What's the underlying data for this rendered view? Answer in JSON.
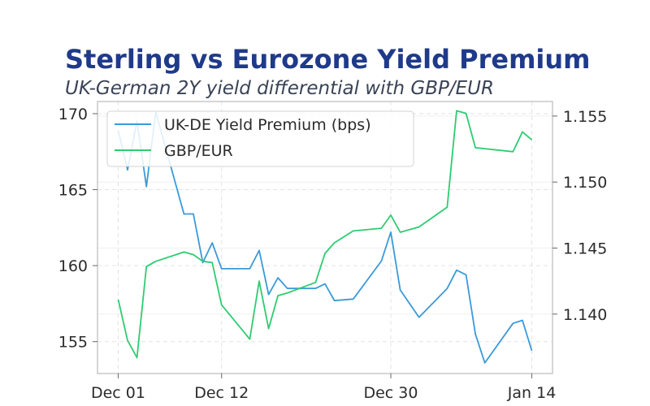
{
  "chart_data": {
    "type": "line",
    "title": "Sterling vs Eurozone Yield Premium",
    "subtitle": "UK-German 2Y yield differential with GBP/EUR",
    "xlabel": "",
    "x_ticks": [
      "Dec 01",
      "Dec 12",
      "Dec 30",
      "Jan 14"
    ],
    "x_tick_days": [
      0,
      11,
      29,
      44
    ],
    "xlim_days": [
      -2.2,
      46.2
    ],
    "grid": true,
    "legend_position": "top-left",
    "y_left": {
      "label": "",
      "ylim": [
        152.9,
        170.8
      ],
      "ticks": [
        155,
        160,
        165,
        170
      ]
    },
    "y_right": {
      "label": "",
      "ylim": [
        1.1355,
        1.1561
      ],
      "ticks": [
        1.14,
        1.145,
        1.15,
        1.155
      ],
      "tick_labels": [
        "1.140",
        "1.145",
        "1.150",
        "1.155"
      ]
    },
    "series": [
      {
        "name": "UK-DE Yield Premium (bps)",
        "axis": "left",
        "color": "#3a9ad9",
        "points": [
          [
            "Dec 01",
            168.9
          ],
          [
            "Dec 02",
            166.3
          ],
          [
            "Dec 03",
            169.5
          ],
          [
            "Dec 04",
            165.2
          ],
          [
            "Dec 05",
            170.1
          ],
          [
            "Dec 08",
            163.4
          ],
          [
            "Dec 09",
            163.4
          ],
          [
            "Dec 10",
            160.2
          ],
          [
            "Dec 11",
            161.5
          ],
          [
            "Dec 12",
            159.8
          ],
          [
            "Dec 15",
            159.8
          ],
          [
            "Dec 16",
            161.0
          ],
          [
            "Dec 17",
            158.1
          ],
          [
            "Dec 18",
            159.2
          ],
          [
            "Dec 19",
            158.5
          ],
          [
            "Dec 22",
            158.5
          ],
          [
            "Dec 23",
            158.8
          ],
          [
            "Dec 24",
            157.7
          ],
          [
            "Dec 26",
            157.8
          ],
          [
            "Dec 29",
            160.3
          ],
          [
            "Dec 30",
            162.2
          ],
          [
            "Dec 31",
            158.4
          ],
          [
            "Jan 02",
            156.6
          ],
          [
            "Jan 05",
            158.5
          ],
          [
            "Jan 06",
            159.7
          ],
          [
            "Jan 07",
            159.4
          ],
          [
            "Jan 08",
            155.5
          ],
          [
            "Jan 09",
            153.6
          ],
          [
            "Jan 12",
            156.2
          ],
          [
            "Jan 13",
            156.4
          ],
          [
            "Jan 14",
            154.4
          ]
        ]
      },
      {
        "name": "GBP/EUR",
        "axis": "right",
        "color": "#2ecc71",
        "points": [
          [
            "Dec 01",
            1.1411
          ],
          [
            "Dec 02",
            1.138
          ],
          [
            "Dec 03",
            1.1367
          ],
          [
            "Dec 04",
            1.1436
          ],
          [
            "Dec 05",
            1.144
          ],
          [
            "Dec 08",
            1.1447
          ],
          [
            "Dec 09",
            1.1445
          ],
          [
            "Dec 10",
            1.144
          ],
          [
            "Dec 11",
            1.1439
          ],
          [
            "Dec 12",
            1.1407
          ],
          [
            "Dec 15",
            1.1381
          ],
          [
            "Dec 16",
            1.1425
          ],
          [
            "Dec 17",
            1.1389
          ],
          [
            "Dec 18",
            1.1414
          ],
          [
            "Dec 19",
            1.1416
          ],
          [
            "Dec 22",
            1.1424
          ],
          [
            "Dec 23",
            1.1446
          ],
          [
            "Dec 24",
            1.1454
          ],
          [
            "Dec 26",
            1.1463
          ],
          [
            "Dec 29",
            1.1465
          ],
          [
            "Dec 30",
            1.1475
          ],
          [
            "Dec 31",
            1.1462
          ],
          [
            "Jan 02",
            1.1466
          ],
          [
            "Jan 05",
            1.1481
          ],
          [
            "Jan 06",
            1.1554
          ],
          [
            "Jan 07",
            1.1552
          ],
          [
            "Jan 08",
            1.1526
          ],
          [
            "Jan 12",
            1.1523
          ],
          [
            "Jan 13",
            1.1538
          ],
          [
            "Jan 14",
            1.1532
          ]
        ]
      }
    ]
  }
}
